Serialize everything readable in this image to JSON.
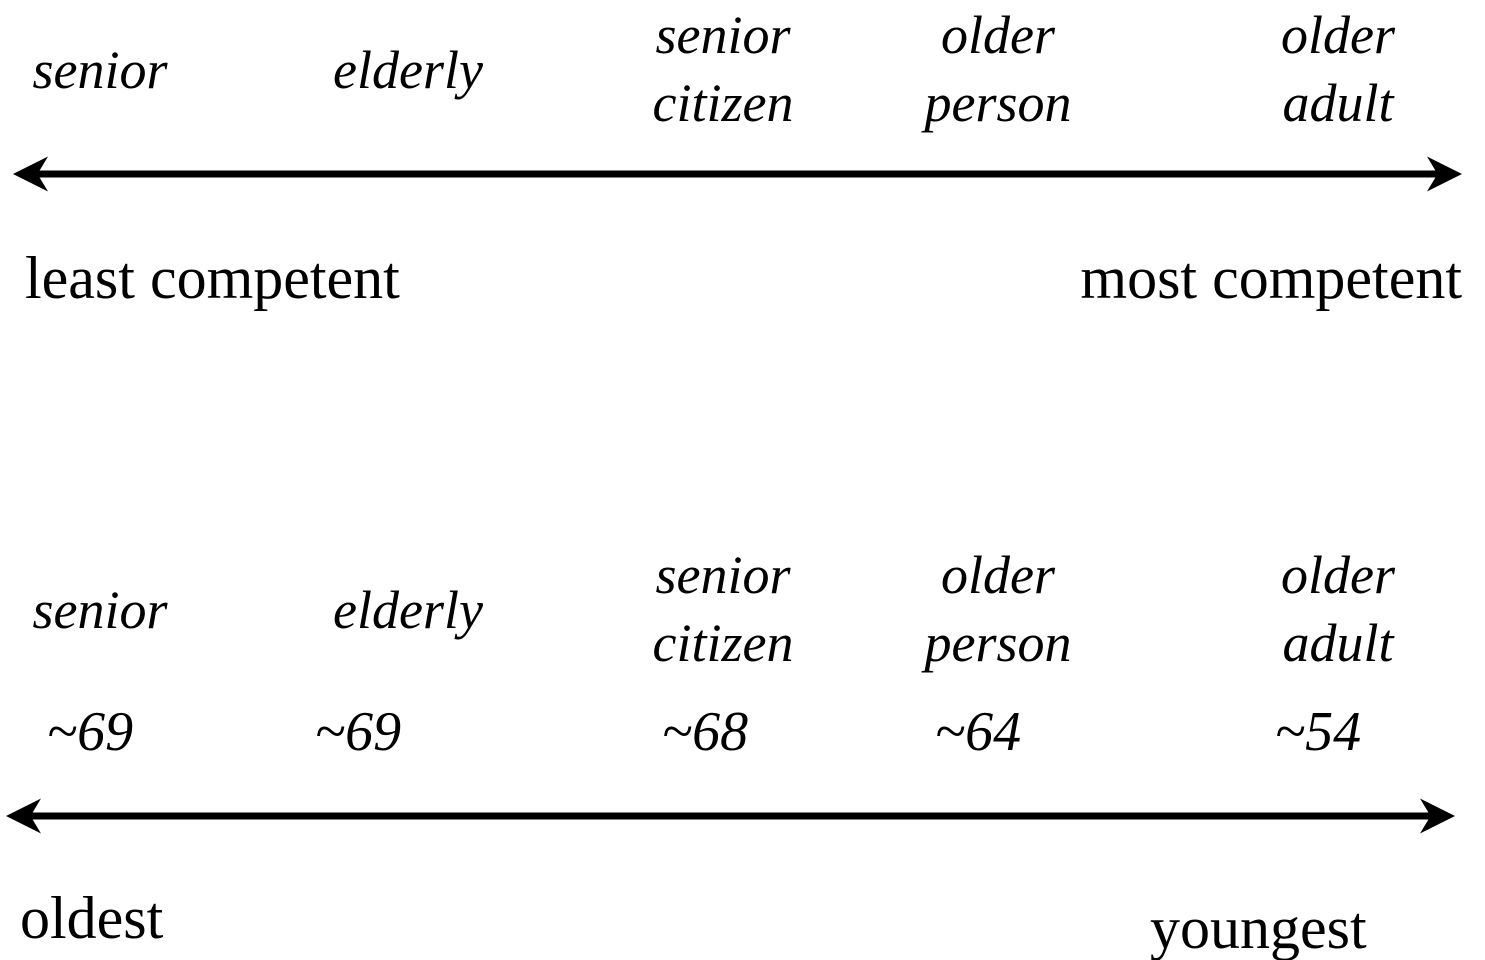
{
  "top": {
    "terms": [
      [
        "senior"
      ],
      [
        "elderly"
      ],
      [
        "senior",
        "citizen"
      ],
      [
        "older",
        "person"
      ],
      [
        "older",
        "adult"
      ]
    ],
    "left_label": "least competent",
    "right_label": "most competent"
  },
  "bottom": {
    "terms": [
      [
        "senior"
      ],
      [
        "elderly"
      ],
      [
        "senior",
        "citizen"
      ],
      [
        "older",
        "person"
      ],
      [
        "older",
        "adult"
      ]
    ],
    "ages": [
      "~69",
      "~69",
      "~68",
      "~64",
      "~54"
    ],
    "left_label": "oldest",
    "right_label": "youngest"
  }
}
